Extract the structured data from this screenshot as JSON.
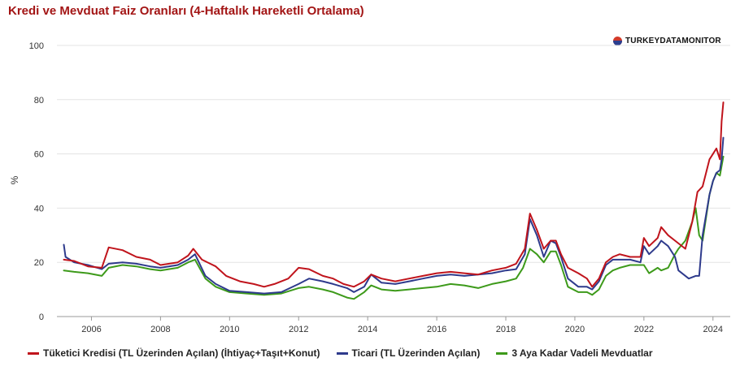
{
  "chart_data": {
    "type": "line",
    "title": "Kredi ve Mevduat Faiz Oranları (4-Haftalık Hareketli Ortalama)",
    "ylabel": "%",
    "xlabel": "",
    "ylim": [
      0,
      100
    ],
    "xlim": [
      2005.0,
      2024.5
    ],
    "yticks": [
      "0",
      "20",
      "40",
      "60",
      "80",
      "100"
    ],
    "xticks": [
      "2006",
      "2008",
      "2010",
      "2012",
      "2014",
      "2016",
      "2018",
      "2020",
      "2022",
      "2024"
    ],
    "grid": "horizontal",
    "legend_position": "bottom",
    "watermark": "TURKEYDATAMONITOR",
    "series": [
      {
        "name": "Tüketici Kredisi (TL Üzerinden Açılan) (İhtiyaç+Taşıt+Konut)",
        "color": "#c0141c",
        "x": [
          2005.2,
          2005.5,
          2005.9,
          2006.3,
          2006.5,
          2006.9,
          2007.3,
          2007.7,
          2008.0,
          2008.5,
          2008.8,
          2008.95,
          2009.2,
          2009.6,
          2009.9,
          2010.3,
          2010.7,
          2011.0,
          2011.3,
          2011.7,
          2012.0,
          2012.3,
          2012.7,
          2013.0,
          2013.3,
          2013.6,
          2013.9,
          2014.1,
          2014.4,
          2014.8,
          2015.2,
          2015.6,
          2016.0,
          2016.4,
          2016.8,
          2017.2,
          2017.6,
          2018.0,
          2018.3,
          2018.55,
          2018.7,
          2018.9,
          2019.1,
          2019.3,
          2019.45,
          2019.6,
          2019.8,
          2020.1,
          2020.35,
          2020.5,
          2020.7,
          2020.9,
          2021.1,
          2021.3,
          2021.6,
          2021.9,
          2022.0,
          2022.15,
          2022.4,
          2022.5,
          2022.7,
          2022.9,
          2023.2,
          2023.4,
          2023.55,
          2023.7,
          2023.9,
          2024.0,
          2024.1,
          2024.2,
          2024.25,
          2024.3
        ],
        "values": [
          21,
          20.5,
          18.5,
          18,
          25.5,
          24.5,
          22,
          21,
          19,
          20,
          22.5,
          25,
          21,
          18.5,
          15,
          13,
          12,
          11,
          12,
          14,
          18,
          17.5,
          15,
          14,
          12,
          11,
          13,
          15.5,
          14,
          13,
          14,
          15,
          16,
          16.5,
          16,
          15.5,
          17,
          18,
          19.5,
          25,
          38,
          32,
          25,
          28,
          28,
          23,
          18,
          16,
          14,
          11,
          14,
          20,
          22,
          23,
          22,
          22,
          29,
          26,
          29,
          33,
          30,
          28,
          25,
          35,
          46,
          48,
          58,
          60,
          62,
          58,
          72,
          79
        ]
      },
      {
        "name": "Ticari (TL Üzerinden Açılan)",
        "color": "#2e3a8c",
        "x": [
          2005.2,
          2005.25,
          2005.5,
          2005.9,
          2006.3,
          2006.5,
          2006.9,
          2007.3,
          2007.7,
          2008.0,
          2008.5,
          2008.8,
          2009.0,
          2009.3,
          2009.6,
          2010.0,
          2010.5,
          2011.0,
          2011.5,
          2012.0,
          2012.3,
          2012.7,
          2013.0,
          2013.4,
          2013.6,
          2013.9,
          2014.1,
          2014.4,
          2014.8,
          2015.2,
          2015.6,
          2016.0,
          2016.4,
          2016.8,
          2017.2,
          2017.6,
          2018.0,
          2018.3,
          2018.55,
          2018.7,
          2018.9,
          2019.1,
          2019.3,
          2019.45,
          2019.6,
          2019.8,
          2020.1,
          2020.35,
          2020.5,
          2020.7,
          2020.9,
          2021.1,
          2021.3,
          2021.6,
          2021.9,
          2022.0,
          2022.15,
          2022.4,
          2022.5,
          2022.7,
          2022.9,
          2023.0,
          2023.3,
          2023.5,
          2023.6,
          2023.7,
          2023.9,
          2024.0,
          2024.1,
          2024.2,
          2024.25,
          2024.3
        ],
        "values": [
          26.5,
          22,
          20,
          19,
          17.5,
          19.5,
          20,
          19.5,
          18.5,
          18,
          19,
          21,
          23,
          15,
          12,
          9.5,
          9,
          8.5,
          9,
          12,
          14,
          13,
          12,
          10.5,
          9,
          11,
          15.5,
          12.5,
          12,
          13,
          14,
          15,
          15.5,
          15,
          15.5,
          16,
          17,
          17.5,
          23,
          36,
          30,
          22,
          28,
          27,
          22,
          14,
          11,
          11,
          10,
          13,
          19,
          21,
          21,
          21,
          20,
          26,
          23,
          26,
          28,
          26,
          22,
          17,
          14,
          15,
          15,
          30,
          45,
          50,
          53,
          54,
          58,
          66
        ]
      },
      {
        "name": "3 Aya Kadar Vadeli Mevduatlar",
        "color": "#3d9a1a",
        "x": [
          2005.2,
          2005.5,
          2005.9,
          2006.3,
          2006.5,
          2006.9,
          2007.3,
          2007.7,
          2008.0,
          2008.5,
          2008.8,
          2009.0,
          2009.3,
          2009.6,
          2010.0,
          2010.5,
          2011.0,
          2011.5,
          2012.0,
          2012.3,
          2012.7,
          2013.0,
          2013.4,
          2013.6,
          2013.9,
          2014.1,
          2014.4,
          2014.8,
          2015.2,
          2015.6,
          2016.0,
          2016.4,
          2016.8,
          2017.2,
          2017.6,
          2018.0,
          2018.3,
          2018.5,
          2018.7,
          2018.9,
          2019.1,
          2019.3,
          2019.45,
          2019.6,
          2019.8,
          2020.1,
          2020.35,
          2020.5,
          2020.7,
          2020.9,
          2021.1,
          2021.3,
          2021.6,
          2021.9,
          2022.0,
          2022.15,
          2022.4,
          2022.5,
          2022.7,
          2022.9,
          2023.0,
          2023.2,
          2023.4,
          2023.5,
          2023.6,
          2023.7,
          2023.9,
          2024.0,
          2024.1,
          2024.2,
          2024.3
        ],
        "values": [
          17,
          16.5,
          16,
          15,
          18,
          19,
          18.5,
          17.5,
          17,
          18,
          20,
          21,
          14,
          11,
          9,
          8.5,
          8,
          8.5,
          10.5,
          11,
          10,
          9,
          7,
          6.5,
          9,
          11.5,
          10,
          9.5,
          10,
          10.5,
          11,
          12,
          11.5,
          10.5,
          12,
          13,
          14,
          18,
          25,
          23,
          20,
          24,
          24,
          19,
          11,
          9,
          9,
          8,
          10,
          15,
          17,
          18,
          19,
          19,
          19,
          16,
          18,
          17,
          18,
          23,
          25,
          28,
          35,
          40,
          30,
          28,
          45,
          50,
          53,
          52,
          59
        ]
      }
    ]
  }
}
